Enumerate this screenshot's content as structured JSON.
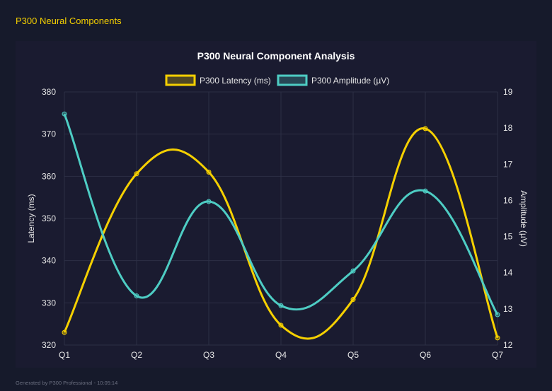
{
  "page": {
    "title": "P300 Neural Components",
    "footer": "Generated by P300 Professional - 10:05:14"
  },
  "chart_data": {
    "type": "line",
    "title": "P300 Neural Component Analysis",
    "categories": [
      "Q1",
      "Q2",
      "Q3",
      "Q4",
      "Q5",
      "Q6",
      "Q7"
    ],
    "legend_position": "top",
    "grid": true,
    "series": [
      {
        "name": "P300 Latency (ms)",
        "axis": "left",
        "color": "#f5d000",
        "values": [
          323.0,
          360.6,
          361.0,
          324.7,
          330.8,
          371.3,
          321.7
        ]
      },
      {
        "name": "P300 Amplitude (µV)",
        "axis": "right",
        "color": "#4ecdc4",
        "values": [
          18.39,
          13.36,
          15.97,
          13.09,
          14.05,
          16.26,
          12.84
        ]
      }
    ],
    "y_left": {
      "label": "Latency (ms)",
      "ylim": [
        320,
        380
      ],
      "ticks": [
        "320",
        "330",
        "340",
        "350",
        "360",
        "370",
        "380"
      ]
    },
    "y_right": {
      "label": "Amplitude (µV)",
      "ylim": [
        12,
        19
      ],
      "ticks": [
        "12",
        "13",
        "14",
        "15",
        "16",
        "17",
        "18",
        "19"
      ]
    }
  }
}
